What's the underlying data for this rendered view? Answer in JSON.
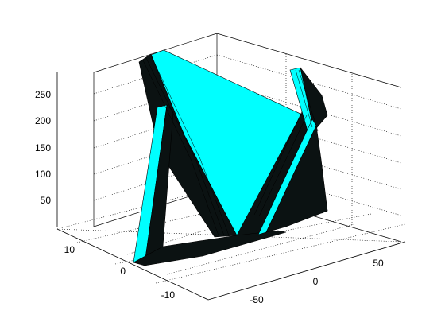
{
  "chart_data": {
    "type": "surface3d",
    "title": "",
    "xlabel": "",
    "ylabel": "",
    "zlabel": "",
    "grid": true,
    "face_color": "#00ffff",
    "edge_color": "#000000",
    "background": "#ffffff",
    "x_ticks": [
      "-50",
      "0",
      "50"
    ],
    "y_ticks": [
      "-10",
      "0",
      "10"
    ],
    "z_ticks": [
      "50",
      "100",
      "150",
      "200",
      "250"
    ],
    "xlim": [
      -80,
      80
    ],
    "ylim": [
      -17,
      17
    ],
    "zlim": [
      0,
      280
    ]
  }
}
